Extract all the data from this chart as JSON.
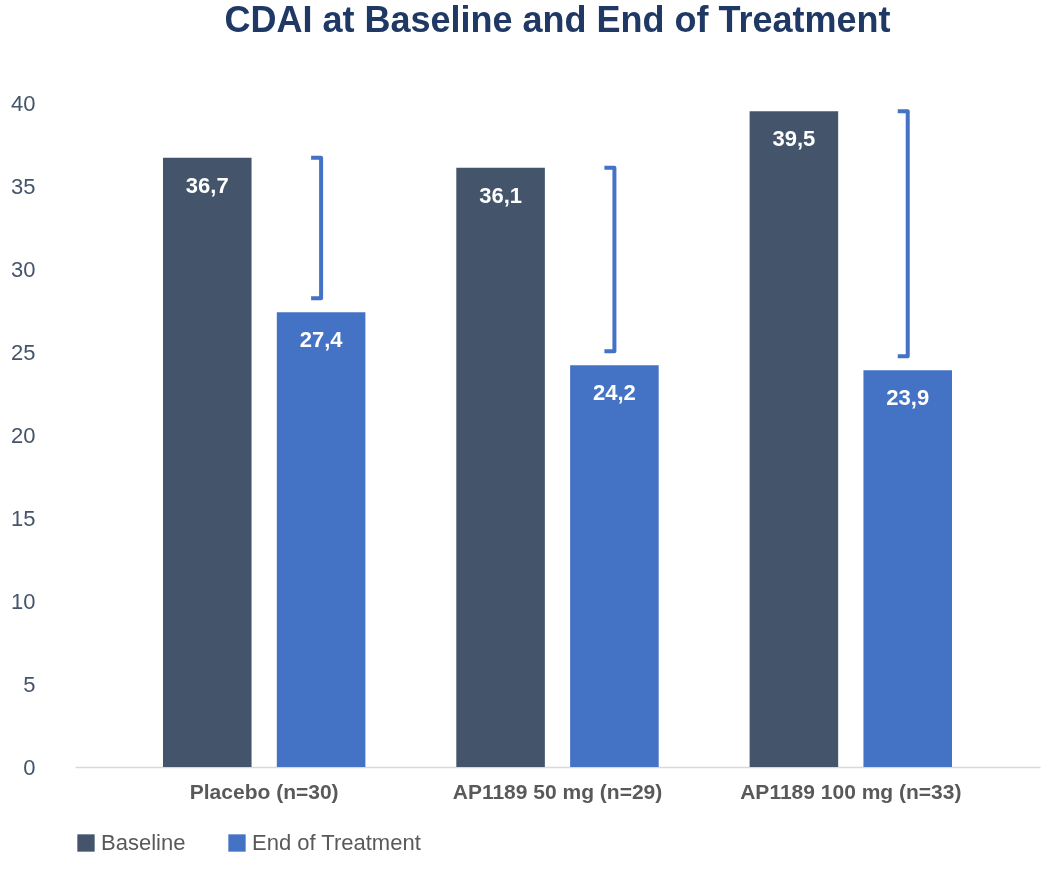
{
  "chart_data": {
    "type": "bar",
    "title": "CDAI at Baseline and End of Treatment",
    "categories": [
      "Placebo (n=30)",
      "AP1189 50 mg (n=29)",
      "AP1189 100 mg (n=33)"
    ],
    "series": [
      {
        "name": "Baseline",
        "color": "#44546a",
        "values": [
          36.7,
          36.1,
          39.5
        ],
        "value_labels": [
          "36,7",
          "36,1",
          "39,5"
        ]
      },
      {
        "name": "End of Treatment",
        "color": "#4472c4",
        "values": [
          27.4,
          24.2,
          23.9
        ],
        "value_labels": [
          "27,4",
          "24,2",
          "23,9"
        ]
      }
    ],
    "ylim": [
      0,
      40
    ],
    "yticks": [
      0,
      5,
      10,
      15,
      20,
      25,
      30,
      35,
      40
    ],
    "grid": false,
    "legend": "bottom"
  }
}
